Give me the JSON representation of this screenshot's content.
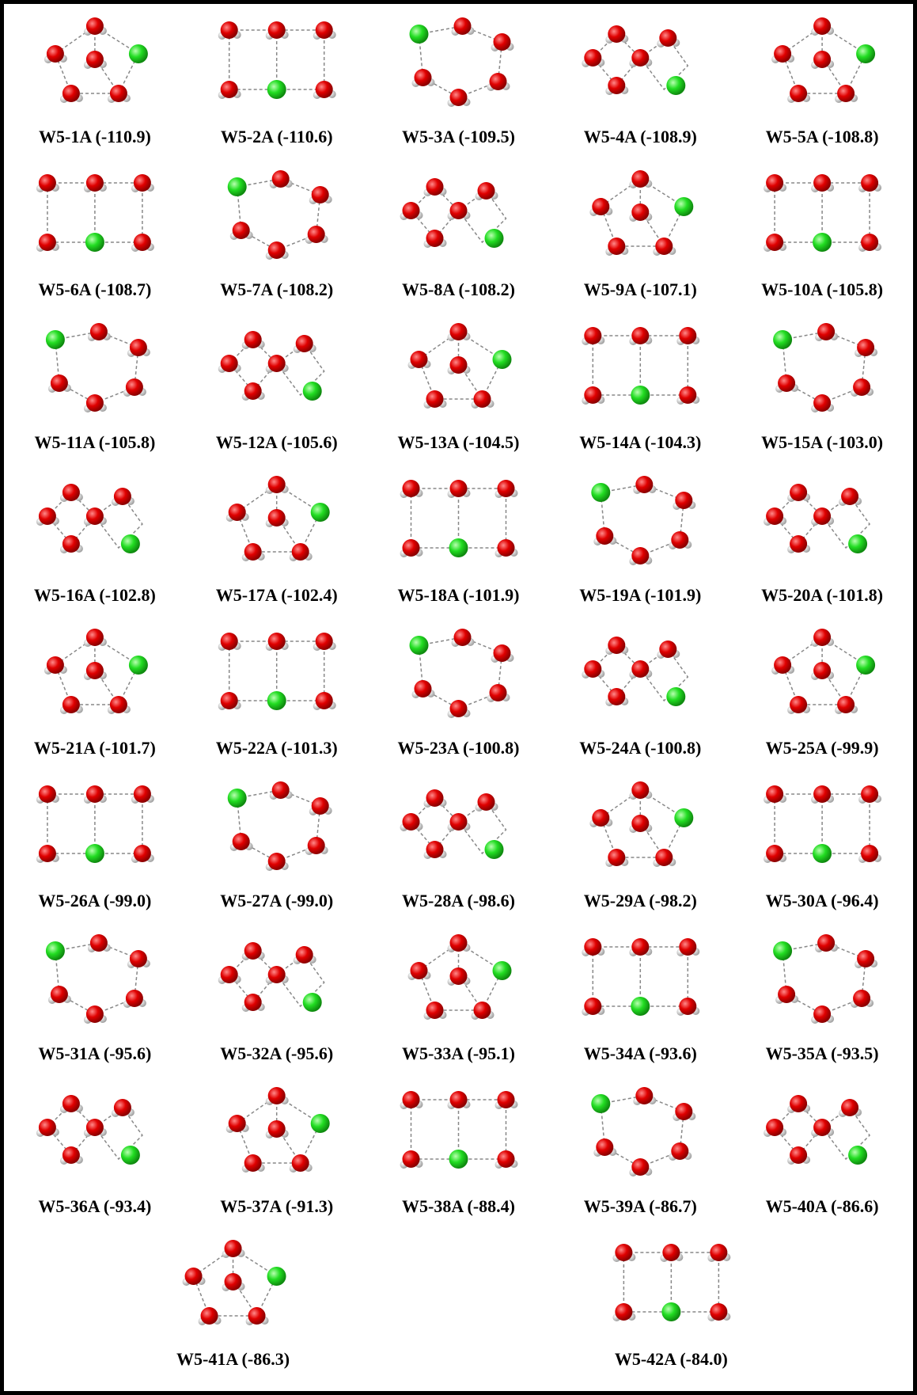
{
  "structures": [
    "W5-1A (-110.9)",
    "W5-2A (-110.6)",
    "W5-3A (-109.5)",
    "W5-4A (-108.9)",
    "W5-5A (-108.8)",
    "W5-6A (-108.7)",
    "W5-7A (-108.2)",
    "W5-8A (-108.2)",
    "W5-9A (-107.1)",
    "W5-10A (-105.8)",
    "W5-11A (-105.8)",
    "W5-12A (-105.6)",
    "W5-13A (-104.5)",
    "W5-14A (-104.3)",
    "W5-15A (-103.0)",
    "W5-16A (-102.8)",
    "W5-17A (-102.4)",
    "W5-18A (-101.9)",
    "W5-19A (-101.9)",
    "W5-20A (-101.8)",
    "W5-21A (-101.7)",
    "W5-22A (-101.3)",
    "W5-23A (-100.8)",
    "W5-24A (-100.8)",
    "W5-25A (-99.9)",
    "W5-26A (-99.0)",
    "W5-27A (-99.0)",
    "W5-28A (-98.6)",
    "W5-29A (-98.2)",
    "W5-30A (-96.4)",
    "W5-31A (-95.6)",
    "W5-32A (-95.6)",
    "W5-33A (-95.1)",
    "W5-34A (-93.6)",
    "W5-35A (-93.5)",
    "W5-36A (-93.4)",
    "W5-37A (-91.3)",
    "W5-38A (-88.4)",
    "W5-39A (-86.7)",
    "W5-40A (-86.6)",
    "W5-41A (-86.3)",
    "W5-42A (-84.0)"
  ]
}
